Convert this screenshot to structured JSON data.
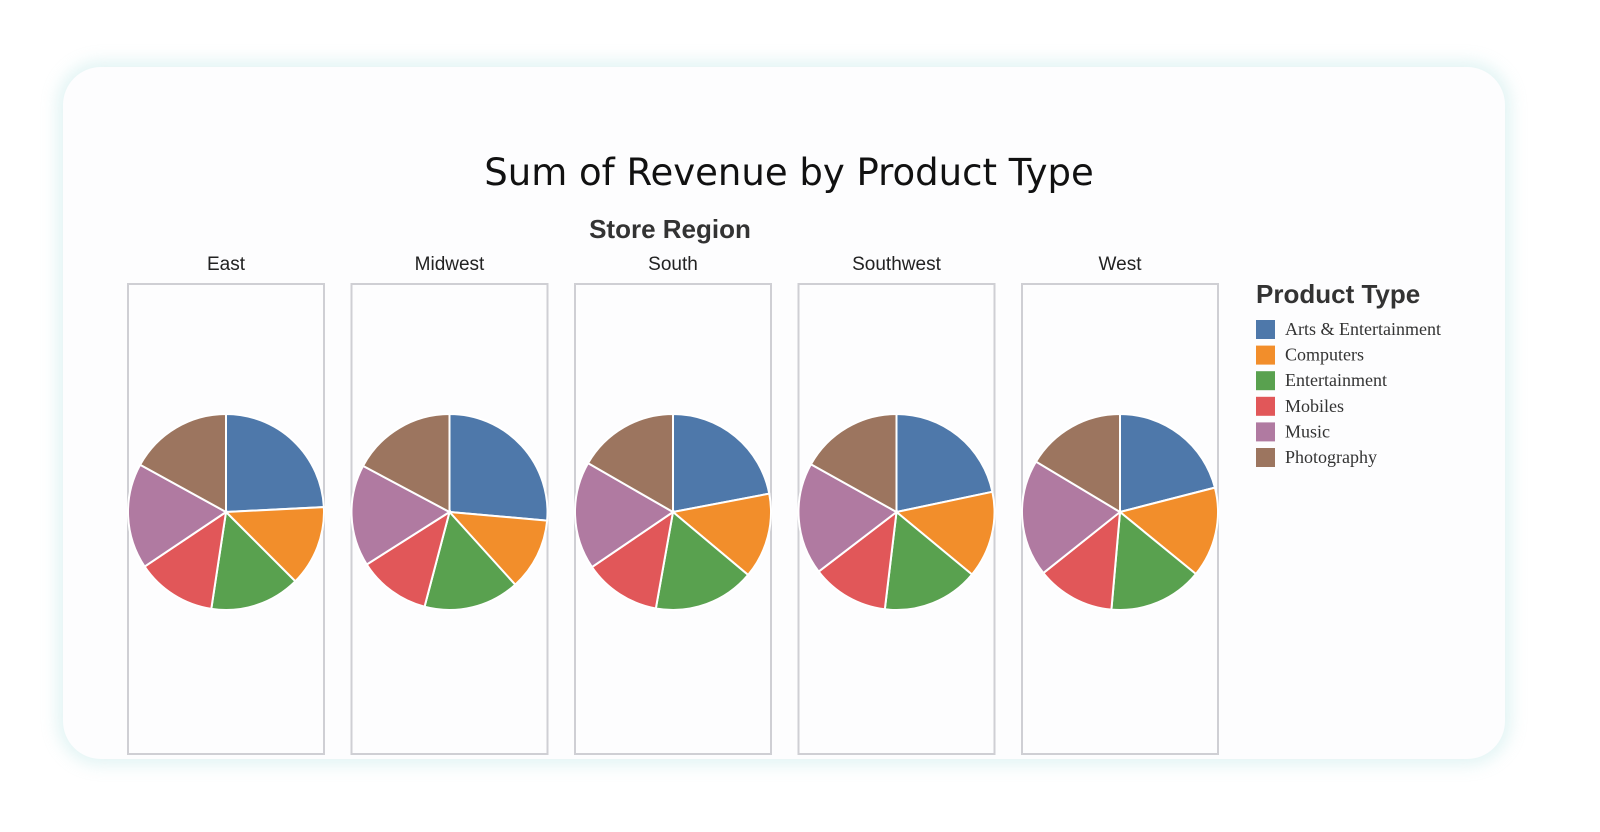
{
  "chart_data": {
    "type": "pie",
    "title": "Sum of Revenue by Product Type",
    "facet_title": "Store Region",
    "legend_title": "Product Type",
    "legend_position": "right",
    "categories": [
      "Arts & Entertainment",
      "Computers",
      "Entertainment",
      "Mobiles",
      "Music",
      "Photography"
    ],
    "colors": [
      "#4e78aa",
      "#f28e2b",
      "#59a14f",
      "#e15759",
      "#b07aa1",
      "#9c755f"
    ],
    "facets": [
      {
        "name": "East",
        "values": [
          24.2,
          13.3,
          14.9,
          13.2,
          17.4,
          17.0
        ]
      },
      {
        "name": "Midwest",
        "values": [
          26.4,
          11.9,
          15.8,
          11.9,
          16.8,
          17.2
        ]
      },
      {
        "name": "South",
        "values": [
          22.0,
          14.1,
          16.7,
          12.7,
          17.8,
          16.7
        ]
      },
      {
        "name": "Southwest",
        "values": [
          21.7,
          14.3,
          15.9,
          12.7,
          18.5,
          16.9
        ]
      },
      {
        "name": "West",
        "values": [
          21.0,
          14.9,
          15.5,
          12.9,
          19.3,
          16.4
        ]
      }
    ]
  }
}
